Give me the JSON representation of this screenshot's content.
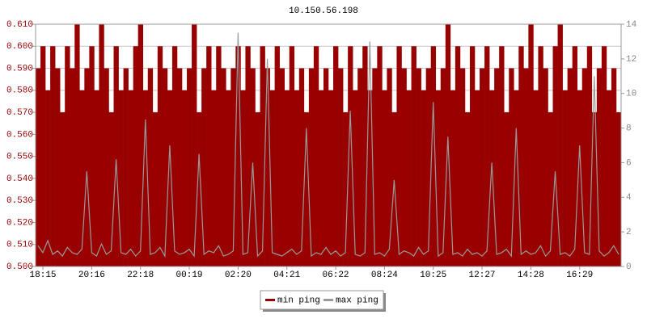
{
  "chart_data": {
    "type": "bar",
    "title": "10.150.56.198",
    "categories": [
      null,
      "18:15",
      null,
      null,
      null,
      null,
      null,
      null,
      null,
      null,
      null,
      "20:16",
      null,
      null,
      null,
      null,
      null,
      null,
      null,
      null,
      null,
      "22:18",
      null,
      null,
      null,
      null,
      null,
      null,
      null,
      null,
      null,
      "00:19",
      null,
      null,
      null,
      null,
      null,
      null,
      null,
      null,
      null,
      "02:20",
      null,
      null,
      null,
      null,
      null,
      null,
      null,
      null,
      null,
      "04:21",
      null,
      null,
      null,
      null,
      null,
      null,
      null,
      null,
      null,
      "06:22",
      null,
      null,
      null,
      null,
      null,
      null,
      null,
      null,
      null,
      "08:24",
      null,
      null,
      null,
      null,
      null,
      null,
      null,
      null,
      null,
      "10:25",
      null,
      null,
      null,
      null,
      null,
      null,
      null,
      null,
      null,
      "12:27",
      null,
      null,
      null,
      null,
      null,
      null,
      null,
      null,
      null,
      "14:28",
      null,
      null,
      null,
      null,
      null,
      null,
      null,
      null,
      null,
      "16:29",
      null,
      null,
      null,
      null,
      null,
      null,
      null,
      null
    ],
    "series": [
      {
        "name": "min ping",
        "color": "#990000",
        "values": [
          0.59,
          0.6,
          0.58,
          0.6,
          0.59,
          0.57,
          0.6,
          0.59,
          0.61,
          0.58,
          0.59,
          0.6,
          0.58,
          0.61,
          0.59,
          0.57,
          0.6,
          0.58,
          0.59,
          0.58,
          0.6,
          0.61,
          0.58,
          0.59,
          0.57,
          0.6,
          0.59,
          0.58,
          0.6,
          0.59,
          0.58,
          0.59,
          0.61,
          0.57,
          0.59,
          0.6,
          0.58,
          0.6,
          0.59,
          0.58,
          0.59,
          0.6,
          0.58,
          0.6,
          0.59,
          0.57,
          0.6,
          0.59,
          0.58,
          0.6,
          0.59,
          0.58,
          0.6,
          0.58,
          0.59,
          0.57,
          0.59,
          0.6,
          0.58,
          0.59,
          0.58,
          0.6,
          0.59,
          0.57,
          0.6,
          0.58,
          0.59,
          0.6,
          0.58,
          0.59,
          0.6,
          0.58,
          0.59,
          0.57,
          0.6,
          0.59,
          0.58,
          0.6,
          0.59,
          0.58,
          0.59,
          0.6,
          0.58,
          0.59,
          0.61,
          0.58,
          0.6,
          0.59,
          0.57,
          0.6,
          0.58,
          0.59,
          0.6,
          0.58,
          0.59,
          0.6,
          0.57,
          0.59,
          0.58,
          0.6,
          0.59,
          0.61,
          0.58,
          0.6,
          0.59,
          0.57,
          0.6,
          0.61,
          0.58,
          0.59,
          0.6,
          0.58,
          0.59,
          0.6,
          0.57,
          0.59,
          0.6,
          0.58,
          0.59,
          0.57
        ]
      },
      {
        "name": "max ping",
        "color": "#999999",
        "axis": "y2",
        "values": [
          1.2,
          0.8,
          1.5,
          0.7,
          0.9,
          0.6,
          1.1,
          0.8,
          0.7,
          1.0,
          5.5,
          0.8,
          0.6,
          1.3,
          0.7,
          0.9,
          6.2,
          0.8,
          0.7,
          1.0,
          0.6,
          0.9,
          8.5,
          0.7,
          0.8,
          1.1,
          0.6,
          7.0,
          0.9,
          0.7,
          0.8,
          1.0,
          0.6,
          6.5,
          0.7,
          0.9,
          0.8,
          1.2,
          0.6,
          0.7,
          0.9,
          13.5,
          0.7,
          0.8,
          6.0,
          0.6,
          0.9,
          12.0,
          0.8,
          0.7,
          0.6,
          0.8,
          1.0,
          0.7,
          0.9,
          8.0,
          0.6,
          0.8,
          0.7,
          1.1,
          0.7,
          0.9,
          0.6,
          0.8,
          9.0,
          0.7,
          0.6,
          0.8,
          13.0,
          0.7,
          0.8,
          0.6,
          1.0,
          5.0,
          0.7,
          0.9,
          0.8,
          0.6,
          1.1,
          0.7,
          0.9,
          9.5,
          0.6,
          0.8,
          7.5,
          0.7,
          0.8,
          0.6,
          1.0,
          0.7,
          0.8,
          0.6,
          0.9,
          6.0,
          0.7,
          0.8,
          1.0,
          0.6,
          8.0,
          0.7,
          0.9,
          0.7,
          0.8,
          1.2,
          0.6,
          0.9,
          5.5,
          0.7,
          0.8,
          0.6,
          1.0,
          7.0,
          0.8,
          0.7,
          11.0,
          0.9,
          0.6,
          0.8,
          1.2,
          0.7
        ]
      }
    ],
    "ylim": [
      0.5,
      0.61
    ],
    "yticks": [
      {
        "value": 0.5,
        "label": "0.500"
      },
      {
        "value": 0.51,
        "label": "0.510"
      },
      {
        "value": 0.52,
        "label": "0.520"
      },
      {
        "value": 0.53,
        "label": "0.530"
      },
      {
        "value": 0.54,
        "label": "0.540"
      },
      {
        "value": 0.55,
        "label": "0.550"
      },
      {
        "value": 0.56,
        "label": "0.560"
      },
      {
        "value": 0.57,
        "label": "0.570"
      },
      {
        "value": 0.58,
        "label": "0.580"
      },
      {
        "value": 0.59,
        "label": "0.590"
      },
      {
        "value": 0.6,
        "label": "0.600"
      },
      {
        "value": 0.61,
        "label": "0.610"
      }
    ],
    "y2lim": [
      0,
      14
    ],
    "y2ticks": [
      0,
      2,
      4,
      6,
      8,
      10,
      12,
      14
    ],
    "grid": true,
    "legend": "bottom"
  }
}
